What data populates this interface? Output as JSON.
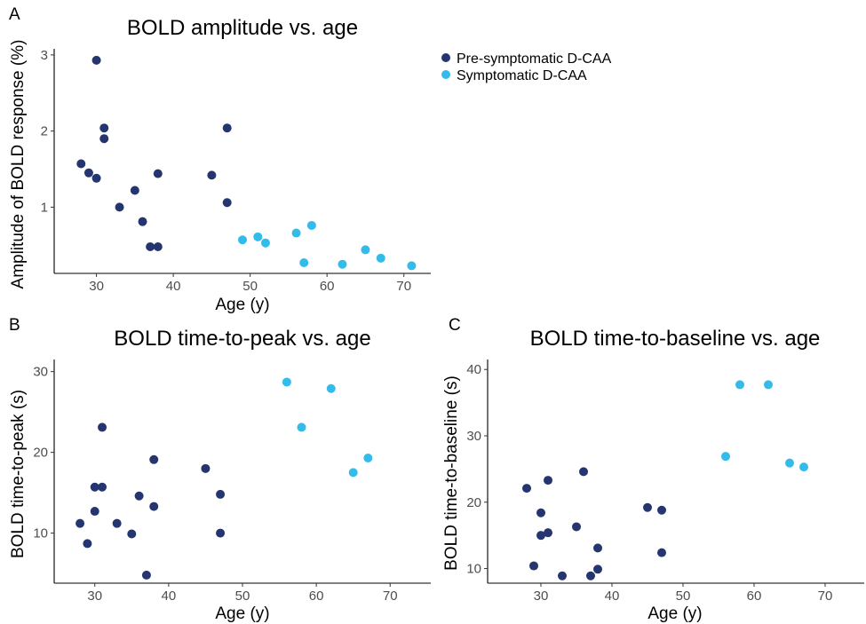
{
  "colors": {
    "pre": "#24356f",
    "sym": "#33bce9"
  },
  "legend": {
    "items": [
      {
        "key": "pre",
        "label": "Pre-symptomatic D-CAA"
      },
      {
        "key": "sym",
        "label": "Symptomatic D-CAA"
      }
    ]
  },
  "chart_data": [
    {
      "type": "scatter",
      "panel": "A",
      "title": "BOLD amplitude vs. age",
      "xlabel": "Age (y)",
      "ylabel": "Amplitude of BOLD response (%)",
      "xlim": [
        24.5,
        73.5
      ],
      "ylim": [
        0.13,
        3.08
      ],
      "xticks": [
        30,
        40,
        50,
        60,
        70
      ],
      "yticks": [
        1,
        2,
        3
      ],
      "grid": false,
      "series": [
        {
          "key": "pre",
          "name": "Pre-symptomatic D-CAA",
          "points": [
            [
              30,
              2.93
            ],
            [
              31,
              2.04
            ],
            [
              47,
              2.04
            ],
            [
              31,
              1.9
            ],
            [
              28,
              1.57
            ],
            [
              29,
              1.45
            ],
            [
              30,
              1.38
            ],
            [
              38,
              1.44
            ],
            [
              45,
              1.42
            ],
            [
              35,
              1.22
            ],
            [
              47,
              1.06
            ],
            [
              33,
              1.0
            ],
            [
              36,
              0.81
            ],
            [
              37,
              0.48
            ],
            [
              38,
              0.48
            ]
          ]
        },
        {
          "key": "sym",
          "name": "Symptomatic D-CAA",
          "points": [
            [
              49,
              0.57
            ],
            [
              51,
              0.61
            ],
            [
              52,
              0.53
            ],
            [
              56,
              0.66
            ],
            [
              58,
              0.76
            ],
            [
              57,
              0.27
            ],
            [
              62,
              0.25
            ],
            [
              65,
              0.44
            ],
            [
              67,
              0.33
            ],
            [
              71,
              0.23
            ]
          ]
        }
      ]
    },
    {
      "type": "scatter",
      "panel": "B",
      "title": "BOLD time-to-peak vs. age",
      "xlabel": "Age (y)",
      "ylabel": "BOLD time-to-peak (s)",
      "xlim": [
        24.5,
        75.5
      ],
      "ylim": [
        3.8,
        31.5
      ],
      "xticks": [
        30,
        40,
        50,
        60,
        70
      ],
      "yticks": [
        10,
        20,
        30
      ],
      "grid": false,
      "series": [
        {
          "key": "pre",
          "name": "Pre-symptomatic D-CAA",
          "points": [
            [
              31,
              23.1
            ],
            [
              38,
              19.1
            ],
            [
              45,
              18.0
            ],
            [
              30,
              15.7
            ],
            [
              31,
              15.7
            ],
            [
              36,
              14.6
            ],
            [
              47,
              14.8
            ],
            [
              38,
              13.3
            ],
            [
              30,
              12.7
            ],
            [
              28,
              11.2
            ],
            [
              33,
              11.2
            ],
            [
              35,
              9.9
            ],
            [
              47,
              10.0
            ],
            [
              29,
              8.7
            ],
            [
              37,
              4.8
            ]
          ]
        },
        {
          "key": "sym",
          "name": "Symptomatic D-CAA",
          "points": [
            [
              56,
              28.7
            ],
            [
              62,
              27.9
            ],
            [
              58,
              23.1
            ],
            [
              67,
              19.3
            ],
            [
              65,
              17.5
            ]
          ]
        }
      ]
    },
    {
      "type": "scatter",
      "panel": "C",
      "title": "BOLD time-to-baseline vs. age",
      "xlabel": "Age (y)",
      "ylabel": "BOLD time-to-baseline (s)",
      "xlim": [
        22.5,
        75.5
      ],
      "ylim": [
        7.8,
        41.5
      ],
      "xticks": [
        30,
        40,
        50,
        60,
        70
      ],
      "yticks": [
        10,
        20,
        30,
        40
      ],
      "grid": false,
      "series": [
        {
          "key": "pre",
          "name": "Pre-symptomatic D-CAA",
          "points": [
            [
              36,
              24.6
            ],
            [
              31,
              23.3
            ],
            [
              28,
              22.1
            ],
            [
              45,
              19.2
            ],
            [
              47,
              18.8
            ],
            [
              30,
              18.4
            ],
            [
              35,
              16.3
            ],
            [
              31,
              15.4
            ],
            [
              30,
              15.0
            ],
            [
              38,
              13.1
            ],
            [
              47,
              12.4
            ],
            [
              29,
              10.4
            ],
            [
              38,
              9.9
            ],
            [
              33,
              8.9
            ],
            [
              37,
              8.9
            ]
          ]
        },
        {
          "key": "sym",
          "name": "Symptomatic D-CAA",
          "points": [
            [
              58,
              37.7
            ],
            [
              62,
              37.7
            ],
            [
              56,
              26.9
            ],
            [
              65,
              25.9
            ],
            [
              67,
              25.3
            ]
          ]
        }
      ]
    }
  ]
}
